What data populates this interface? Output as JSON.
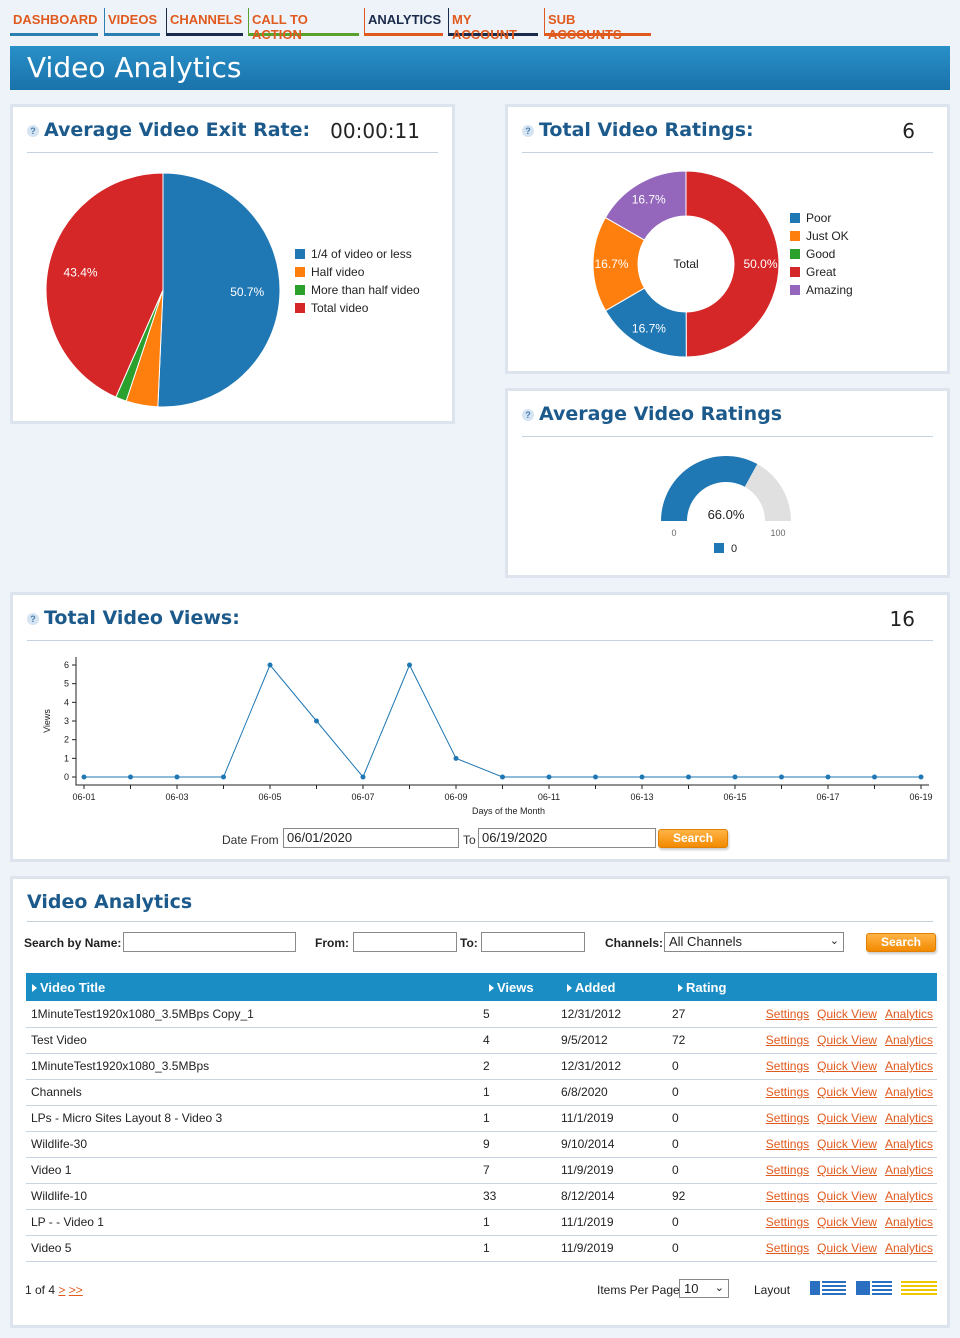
{
  "nav": [
    {
      "label": "DASHBOARD",
      "color": "#e05a1e"
    },
    {
      "label": "VIDEOS",
      "color": "#e05a1e"
    },
    {
      "label": "CHANNELS",
      "color": "#e05a1e"
    },
    {
      "label": "CALL TO ACTION",
      "color": "#e05a1e"
    },
    {
      "label": "ANALYTICS",
      "color": "#1a2a4a"
    },
    {
      "label": "MY ACCOUNT",
      "color": "#e05a1e"
    },
    {
      "label": "SUB ACCOUNTS",
      "color": "#e05a1e"
    }
  ],
  "page_title": "Video Analytics",
  "exit_rate": {
    "title": "Average Video Exit Rate:",
    "value": "00:00:11",
    "help": "?"
  },
  "ratings": {
    "title": "Total Video Ratings:",
    "value": "6",
    "help": "?",
    "center_label": "Total"
  },
  "avg_ratings": {
    "title": "Average Video Ratings",
    "help": "?"
  },
  "views": {
    "title": "Total Video Views:",
    "value": "16",
    "help": "?",
    "date_from_label": "Date From",
    "date_from": "06/01/2020",
    "to_label": "To",
    "date_to": "06/19/2020",
    "search_label": "Search"
  },
  "chart_data": [
    {
      "type": "pie",
      "labels": [
        "1/4 of video or less",
        "Half video",
        "More than half video",
        "Total video"
      ],
      "values": [
        50.7,
        4.4,
        1.5,
        43.4
      ],
      "data_labels": [
        "50.7%",
        "",
        "",
        "43.4%"
      ],
      "colors": [
        "#1f77b4",
        "#ff7f0e",
        "#2ca02c",
        "#d62728"
      ],
      "legend": "right"
    },
    {
      "type": "pie",
      "subtype": "donut",
      "labels": [
        "Poor",
        "Just OK",
        "Good",
        "Great",
        "Amazing"
      ],
      "values": [
        16.7,
        16.7,
        0,
        50.0,
        16.7
      ],
      "data_labels": [
        "16.7%",
        "16.7%",
        "",
        "50.0%",
        "16.7%"
      ],
      "colors": [
        "#1f77b4",
        "#ff7f0e",
        "#2ca02c",
        "#d62728",
        "#9467bd"
      ],
      "center_text": "Total",
      "legend": "right"
    },
    {
      "type": "gauge",
      "value": 66.0,
      "value_label": "66.0%",
      "min": 0,
      "max": 100,
      "min_label": "0",
      "max_label": "100",
      "series": [
        {
          "name": "0",
          "color": "#1f77b4"
        }
      ],
      "legend": "bottom"
    },
    {
      "type": "line",
      "x": [
        "06-01",
        "06-02",
        "06-03",
        "06-04",
        "06-05",
        "06-06",
        "06-07",
        "06-08",
        "06-09",
        "06-10",
        "06-11",
        "06-12",
        "06-13",
        "06-14",
        "06-15",
        "06-16",
        "06-17",
        "06-18",
        "06-19"
      ],
      "xticks": [
        "06-01",
        "06-03",
        "06-05",
        "06-07",
        "06-09",
        "06-11",
        "06-13",
        "06-15",
        "06-17",
        "06-19"
      ],
      "y": [
        0,
        0,
        0,
        0,
        6,
        3,
        0,
        6,
        1,
        0,
        0,
        0,
        0,
        0,
        0,
        0,
        0,
        0,
        0
      ],
      "yticks": [
        0,
        1,
        2,
        3,
        4,
        5,
        6
      ],
      "ylim": [
        0,
        6
      ],
      "xlabel": "Days of the Month",
      "ylabel": "Views",
      "color": "#1f77b4"
    }
  ],
  "table_panel": {
    "title": "Video Analytics",
    "search_name_label": "Search by Name:",
    "from_label": "From:",
    "to_label": "To:",
    "channels_label": "Channels:",
    "channels_value": "All Channels",
    "search_label": "Search",
    "columns": [
      "Video Title",
      "Views",
      "Added",
      "Rating"
    ],
    "action_labels": [
      "Settings",
      "Quick View",
      "Analytics"
    ],
    "rows": [
      {
        "title": "1MinuteTest1920x1080_3.5MBps Copy_1",
        "views": "5",
        "added": "12/31/2012",
        "rating": "27"
      },
      {
        "title": "Test Video",
        "views": "4",
        "added": "9/5/2012",
        "rating": "72"
      },
      {
        "title": "1MinuteTest1920x1080_3.5MBps",
        "views": "2",
        "added": "12/31/2012",
        "rating": "0"
      },
      {
        "title": "Channels",
        "views": "1",
        "added": "6/8/2020",
        "rating": "0"
      },
      {
        "title": "LPs - Micro Sites Layout 8 - Video 3",
        "views": "1",
        "added": "11/1/2019",
        "rating": "0"
      },
      {
        "title": "Wildlife-30",
        "views": "9",
        "added": "9/10/2014",
        "rating": "0"
      },
      {
        "title": "Video 1",
        "views": "7",
        "added": "11/9/2019",
        "rating": "0"
      },
      {
        "title": "Wildlife-10",
        "views": "33",
        "added": "8/12/2014",
        "rating": "92"
      },
      {
        "title": "LP - - Video 1",
        "views": "1",
        "added": "11/1/2019",
        "rating": "0"
      },
      {
        "title": "Video 5",
        "views": "1",
        "added": "11/9/2019",
        "rating": "0"
      }
    ],
    "pager_text": "1 of 4",
    "pager_next": ">",
    "pager_last": ">>",
    "items_per_page_label": "Items Per Page",
    "items_per_page": "10",
    "layout_label": "Layout",
    "layout_icons": [
      "layout-list-icon",
      "layout-detail-icon",
      "layout-stripe-icon"
    ]
  }
}
